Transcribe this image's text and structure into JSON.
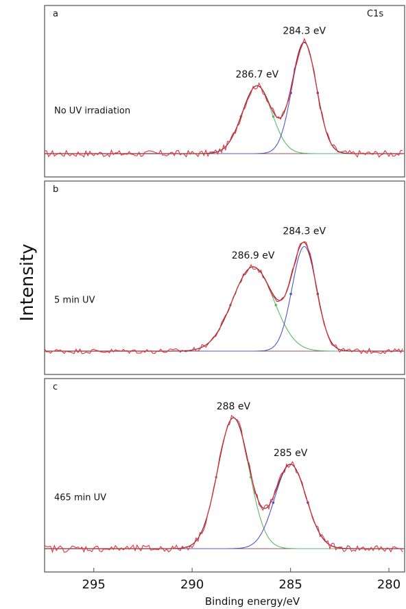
{
  "chart_data": {
    "type": "line",
    "ylabel": "Intensity",
    "xlabel": "Binding energy/eV",
    "xlim": [
      297.5,
      279.2
    ],
    "x_reversed": true,
    "x_ticks": [
      295,
      290,
      285,
      280
    ],
    "colors": {
      "data": "#e0303a",
      "envelope": "#8a2b3a",
      "peak_high_be": "#58b86a",
      "peak_low_be": "#4a56c4",
      "baseline": "#a05060",
      "frame": "#666666"
    },
    "panels": [
      {
        "letter": "a",
        "condition": "No UV irradiation",
        "corner_label": "C1s",
        "baseline": 0.0,
        "noise": 0.028,
        "peaks": [
          {
            "label": "286.7 eV",
            "center": 286.7,
            "height": 0.55,
            "sigma": 0.75
          },
          {
            "label": "284.3 eV",
            "center": 284.3,
            "height": 0.9,
            "sigma": 0.62
          }
        ]
      },
      {
        "letter": "b",
        "condition": "5 min  UV",
        "baseline": 0.0,
        "noise": 0.018,
        "peaks": [
          {
            "label": "286.9  eV",
            "center": 286.9,
            "height": 0.58,
            "sigma": 1.05
          },
          {
            "label": "284.3 eV",
            "center": 284.3,
            "height": 0.72,
            "sigma": 0.62
          }
        ]
      },
      {
        "letter": "c",
        "condition": "465 min  UV",
        "baseline": 0.0,
        "noise": 0.025,
        "peaks": [
          {
            "label": "288 eV",
            "center": 287.9,
            "height": 0.9,
            "sigma": 0.8
          },
          {
            "label": "285 eV",
            "center": 285.0,
            "height": 0.58,
            "sigma": 0.8
          }
        ]
      }
    ]
  }
}
